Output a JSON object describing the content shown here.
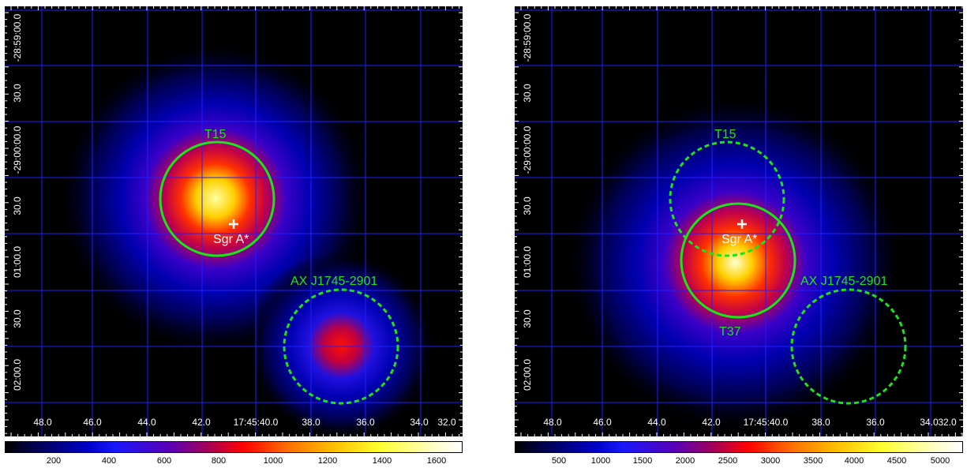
{
  "colors": {
    "background": "#000000",
    "grid": "#1f1fff",
    "region": "#19e619",
    "marker": "#ffffff"
  },
  "panels": {
    "left": {
      "ra_ticks": [
        "48.0",
        "46.0",
        "44.0",
        "42.0",
        "17:45:40.0",
        "38.0",
        "36.0",
        "34.0",
        "32.0"
      ],
      "dec_ticks": [
        "-28:59:00.0",
        "30.0",
        "-29:00:00.0",
        "30.0",
        "01:00.0",
        "30.0",
        "02:00.0"
      ],
      "labels": {
        "t15": "T15",
        "ax": "AX J1745-2901",
        "sgr": "Sgr A*"
      },
      "colorbar_ticks": [
        "200",
        "400",
        "600",
        "800",
        "1000",
        "1200",
        "1400",
        "1600"
      ]
    },
    "right": {
      "ra_ticks": [
        "48.0",
        "46.0",
        "44.0",
        "42.0",
        "17:45:40.0",
        "38.0",
        "36.0",
        "34.0",
        "32.0"
      ],
      "dec_ticks": [
        "-28:59:00.0",
        "30.0",
        "-29:00:00.0",
        "30.0",
        "01:00.0",
        "30.0",
        "02:00.0"
      ],
      "labels": {
        "t15": "T15",
        "t37": "T37",
        "ax": "AX J1745-2901",
        "sgr": "Sgr A*"
      },
      "colorbar_ticks": [
        "500",
        "1000",
        "1500",
        "2000",
        "2500",
        "3000",
        "3500",
        "4000",
        "4500",
        "5000"
      ]
    }
  }
}
